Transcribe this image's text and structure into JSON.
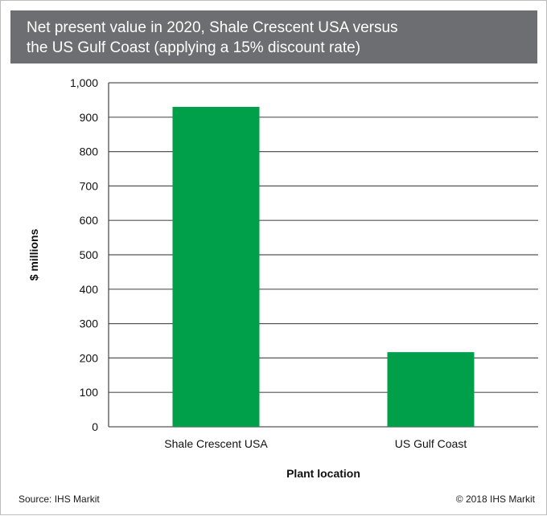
{
  "chart_data": {
    "type": "bar",
    "title_lines": [
      "Net present value in 2020, Shale Crescent USA versus",
      "the US Gulf Coast (applying a 15% discount rate)"
    ],
    "categories": [
      "Shale Crescent USA",
      "US Gulf Coast"
    ],
    "values": [
      930,
      217
    ],
    "xlabel": "Plant location",
    "ylabel": "$ millions",
    "ylim": [
      0,
      1000
    ],
    "yticks": [
      0,
      100,
      200,
      300,
      400,
      500,
      600,
      700,
      800,
      900,
      1000
    ],
    "ytick_labels": [
      "0",
      "100",
      "200",
      "300",
      "400",
      "500",
      "600",
      "700",
      "800",
      "900",
      "1,000"
    ],
    "grid": true,
    "colors": {
      "bar": "#00a04a",
      "title_band": "#6d6e71",
      "gridline": "#555555"
    }
  },
  "footer": {
    "source": "Source:  IHS Markit",
    "copyright": "© 2018  IHS Markit"
  }
}
